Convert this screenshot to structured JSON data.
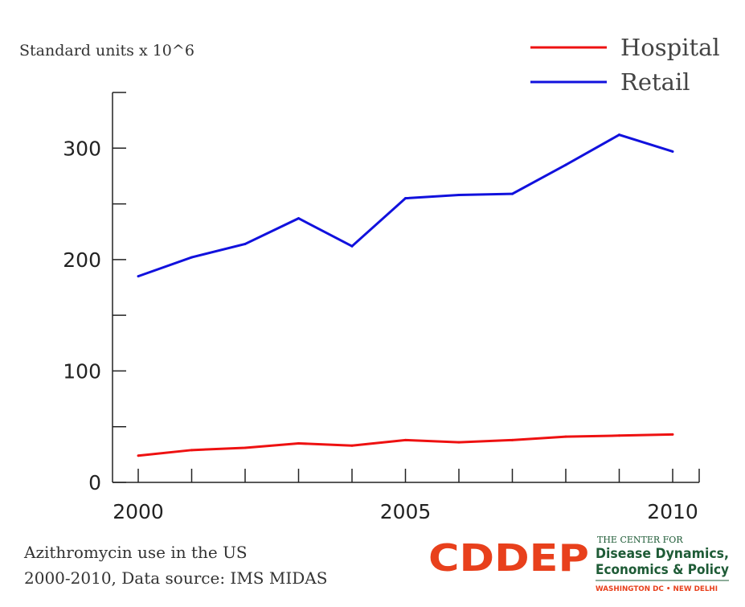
{
  "chart_data": {
    "type": "line",
    "ylabel": "Standard units x 10^6",
    "xlabel": "",
    "title": "",
    "x": [
      2000,
      2001,
      2002,
      2003,
      2004,
      2005,
      2006,
      2007,
      2008,
      2009,
      2010
    ],
    "xlim": [
      1999.5,
      2010.5
    ],
    "ylim": [
      0,
      350
    ],
    "x_ticks": [
      2000,
      2005,
      2010
    ],
    "y_ticks": [
      0,
      100,
      200,
      300
    ],
    "y_minor_ticks": [
      50,
      150,
      250,
      350
    ],
    "series": [
      {
        "name": "Hospital",
        "color": "#ee1111",
        "values": [
          24,
          29,
          31,
          35,
          33,
          38,
          36,
          38,
          41,
          42,
          43
        ]
      },
      {
        "name": "Retail",
        "color": "#1111dd",
        "values": [
          185,
          202,
          214,
          237,
          212,
          255,
          258,
          259,
          285,
          312,
          297
        ]
      }
    ],
    "legend_position": "top-right",
    "grid": false
  },
  "caption": {
    "line1": "Azithromycin use in the US",
    "line2": "2000-2010, Data source: IMS MIDAS"
  },
  "logo": {
    "acronym": "CDDEP",
    "line1": "THE CENTER FOR",
    "line2": "Disease Dynamics,",
    "line3": "Economics & Policy",
    "line4": "WASHINGTON DC • NEW DELHI"
  },
  "colors": {
    "logo_orange": "#e8401c",
    "logo_green": "#1e5b36"
  }
}
